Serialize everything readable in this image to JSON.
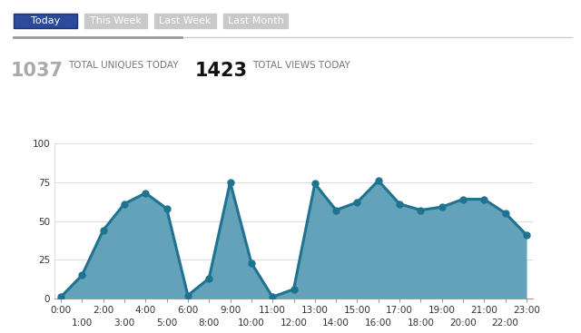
{
  "tabs": {
    "items": [
      "Today",
      "This Week",
      "Last Week",
      "Last Month"
    ],
    "selected": "Today"
  },
  "stats": [
    {
      "value": 1037,
      "label": "TOTAL UNIQUES TODAY"
    },
    {
      "value": 1423,
      "label": "TOTAL VIEWS TODAY"
    }
  ],
  "chart_data": {
    "type": "area",
    "categories": [
      "0:00",
      "1:00",
      "2:00",
      "3:00",
      "4:00",
      "5:00",
      "6:00",
      "8:00",
      "9:00",
      "10:00",
      "11:00",
      "12:00",
      "13:00",
      "14:00",
      "15:00",
      "16:00",
      "17:00",
      "18:00",
      "19:00",
      "20:00",
      "21:00",
      "22:00",
      "23:00"
    ],
    "values": [
      1,
      15,
      44,
      61,
      68,
      58,
      2,
      13,
      75,
      23,
      1,
      6,
      74,
      57,
      62,
      76,
      61,
      57,
      59,
      64,
      64,
      55,
      41
    ],
    "color": "#1f7391",
    "marker": "circle",
    "ylim": [
      0,
      100
    ],
    "yticks": [
      0,
      25,
      50,
      75,
      100
    ],
    "grid": true
  }
}
